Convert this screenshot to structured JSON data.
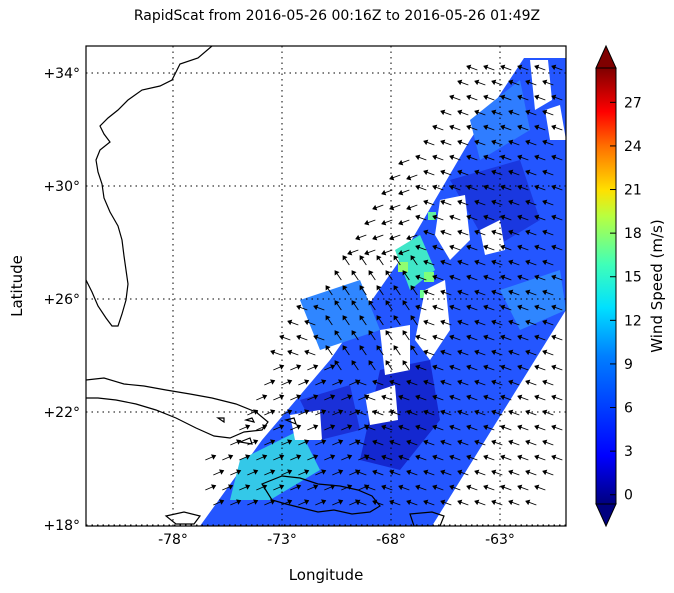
{
  "title": "RapidScat  from 2016-05-26 00:16Z to 2016-05-26 01:49Z",
  "xlabel": "Longitude",
  "ylabel": "Latitude",
  "x_ticks": [
    "-78°",
    "-73°",
    "-68°",
    "-63°"
  ],
  "y_ticks": [
    "+18°",
    "+22°",
    "+26°",
    "+30°",
    "+34°"
  ],
  "colorbar": {
    "label": "Wind Speed (m/s)",
    "ticks": [
      "0",
      "3",
      "6",
      "9",
      "12",
      "15",
      "18",
      "21",
      "24",
      "27"
    ],
    "colors": [
      "#00007f",
      "#0000ff",
      "#0080ff",
      "#00e0ff",
      "#40ffb8",
      "#b8ff40",
      "#ffe000",
      "#ff6000",
      "#e00000",
      "#7f0000"
    ]
  },
  "map_colors": {
    "swath_dominant": "#1f4fff",
    "swath_dark": "#1020c8",
    "swath_light": "#2b8cff",
    "swath_cyan": "#36d6e8",
    "swath_green": "#70ff8a",
    "coast": "#000000"
  }
}
